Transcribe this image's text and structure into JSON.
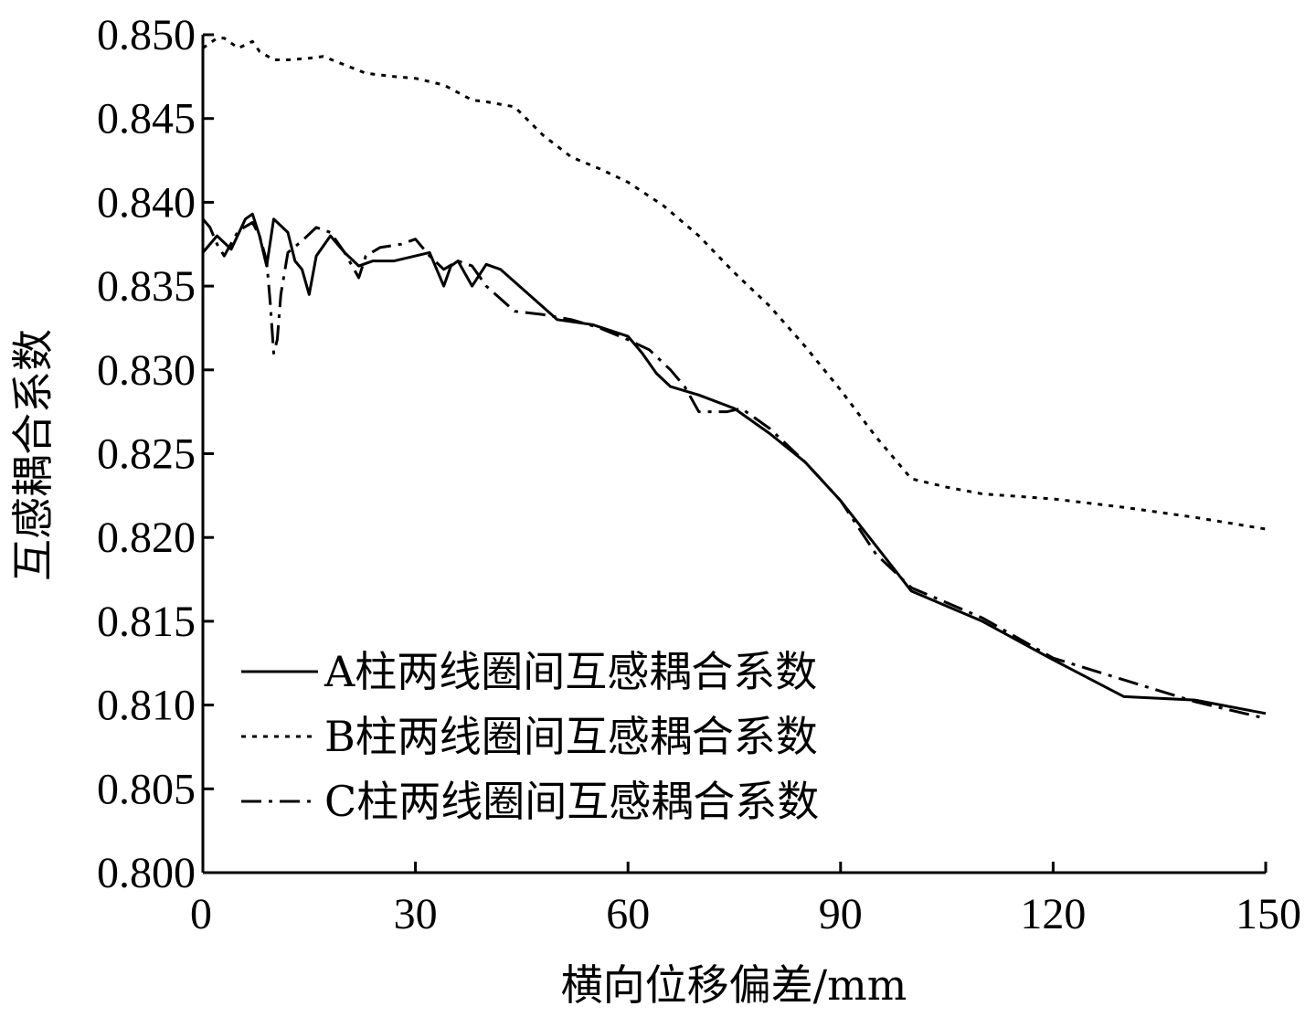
{
  "chart_data": {
    "type": "line",
    "xlabel": "横向位移偏差/mm",
    "ylabel": "互感耦合系数",
    "xlim": [
      0,
      150
    ],
    "ylim": [
      0.8,
      0.85
    ],
    "x_ticks": [
      0,
      30,
      60,
      90,
      120,
      150
    ],
    "x_tick_labels": [
      "0",
      "30",
      "60",
      "90",
      "120",
      "150"
    ],
    "y_ticks": [
      0.8,
      0.805,
      0.81,
      0.815,
      0.82,
      0.825,
      0.83,
      0.835,
      0.84,
      0.845,
      0.85
    ],
    "y_tick_labels": [
      "0.800",
      "0.805",
      "0.810",
      "0.815",
      "0.820",
      "0.825",
      "0.830",
      "0.835",
      "0.840",
      "0.845",
      "0.850"
    ],
    "grid": false,
    "legend_position": "bottom-left",
    "series": [
      {
        "name": "A柱两线圈间互感耦合系数",
        "style": "solid",
        "color": "#000000",
        "x": [
          0,
          2,
          4,
          6,
          7,
          8,
          9,
          10,
          12,
          13,
          14,
          15,
          16,
          18,
          20,
          22,
          24,
          27,
          30,
          32,
          34,
          35,
          36,
          38,
          40,
          42,
          46,
          50,
          55,
          60,
          62,
          64,
          66,
          70,
          75,
          80,
          85,
          90,
          95,
          100,
          110,
          120,
          130,
          140,
          150
        ],
        "y": [
          0.837,
          0.838,
          0.8372,
          0.839,
          0.8393,
          0.838,
          0.8362,
          0.839,
          0.8382,
          0.8365,
          0.836,
          0.8345,
          0.8368,
          0.838,
          0.837,
          0.8362,
          0.8365,
          0.8365,
          0.8368,
          0.837,
          0.835,
          0.8362,
          0.8365,
          0.835,
          0.8363,
          0.836,
          0.8345,
          0.833,
          0.8327,
          0.832,
          0.831,
          0.8298,
          0.829,
          0.8285,
          0.8277,
          0.8262,
          0.8245,
          0.8222,
          0.8195,
          0.8168,
          0.815,
          0.8127,
          0.8105,
          0.8103,
          0.8095
        ]
      },
      {
        "name": "B柱两线圈间互感耦合系数",
        "style": "dotted",
        "color": "#000000",
        "x": [
          0,
          2,
          3,
          5,
          7,
          8,
          10,
          12,
          15,
          17,
          20,
          23,
          27,
          30,
          34,
          38,
          40,
          44,
          48,
          52,
          56,
          60,
          65,
          70,
          75,
          80,
          85,
          90,
          95,
          100,
          105,
          110,
          120,
          130,
          140,
          150
        ],
        "y": [
          0.8492,
          0.8498,
          0.8498,
          0.8492,
          0.8496,
          0.849,
          0.8485,
          0.8485,
          0.8486,
          0.8487,
          0.8482,
          0.8477,
          0.8475,
          0.8474,
          0.847,
          0.8461,
          0.846,
          0.8457,
          0.844,
          0.8427,
          0.842,
          0.8412,
          0.8398,
          0.838,
          0.8358,
          0.8338,
          0.8314,
          0.8288,
          0.826,
          0.8235,
          0.823,
          0.8226,
          0.8223,
          0.8218,
          0.8212,
          0.8205
        ]
      },
      {
        "name": "C柱两线圈间互感耦合系数",
        "style": "dashdot",
        "color": "#000000",
        "x": [
          0,
          1,
          2,
          3,
          5,
          7,
          8,
          9,
          9.5,
          10,
          10.5,
          11,
          12,
          14,
          16,
          18,
          20,
          22,
          23,
          25,
          28,
          30,
          32,
          34,
          36,
          38,
          40,
          44,
          48,
          52,
          56,
          60,
          63,
          66,
          68,
          70,
          72,
          74,
          76,
          80,
          85,
          90,
          95,
          100,
          110,
          120,
          130,
          140,
          150
        ],
        "y": [
          0.839,
          0.8385,
          0.8375,
          0.8368,
          0.8383,
          0.8388,
          0.838,
          0.8365,
          0.834,
          0.831,
          0.8318,
          0.8345,
          0.837,
          0.8377,
          0.8385,
          0.8382,
          0.837,
          0.8355,
          0.8368,
          0.8373,
          0.8375,
          0.8378,
          0.8368,
          0.836,
          0.8365,
          0.8362,
          0.835,
          0.8335,
          0.8333,
          0.833,
          0.8325,
          0.8318,
          0.8312,
          0.83,
          0.829,
          0.8275,
          0.8275,
          0.8275,
          0.8277,
          0.8265,
          0.8245,
          0.8222,
          0.819,
          0.817,
          0.8152,
          0.8128,
          0.8115,
          0.8102,
          0.8092
        ]
      }
    ]
  }
}
